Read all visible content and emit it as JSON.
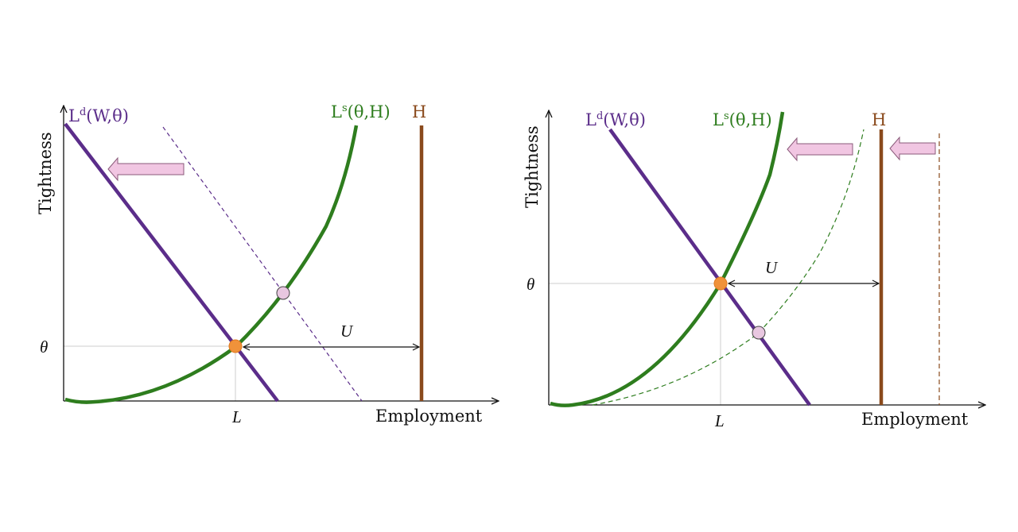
{
  "colors": {
    "demand": "#5b2d8a",
    "supply": "#2e7d1e",
    "labor_force": "#8a4a1c",
    "equilibrium": "#f0923a",
    "shift_point": "#e8c7e0",
    "arrow_fill": "#f1c6e2",
    "arrow_stroke": "#8a5a7a",
    "axis": "#111111",
    "guide": "#cccccc"
  },
  "left": {
    "y_axis_label": "Tightness",
    "x_axis_label": "Employment",
    "theta_label": "θ",
    "l_label": "L",
    "u_label": "U",
    "demand_label": {
      "base": "L",
      "sup": "d",
      "args": "(W,θ)"
    },
    "supply_label": {
      "base": "L",
      "sup": "s",
      "args": "(θ,H)"
    },
    "labor_force_label": "H"
  },
  "right": {
    "y_axis_label": "Tightness",
    "x_axis_label": "Employment",
    "theta_label": "θ",
    "l_label": "L",
    "u_label": "U",
    "demand_label": {
      "base": "L",
      "sup": "d",
      "args": "(W,θ)"
    },
    "supply_label": {
      "base": "L",
      "sup": "s",
      "args": "(θ,H)"
    },
    "labor_force_label": "H"
  }
}
